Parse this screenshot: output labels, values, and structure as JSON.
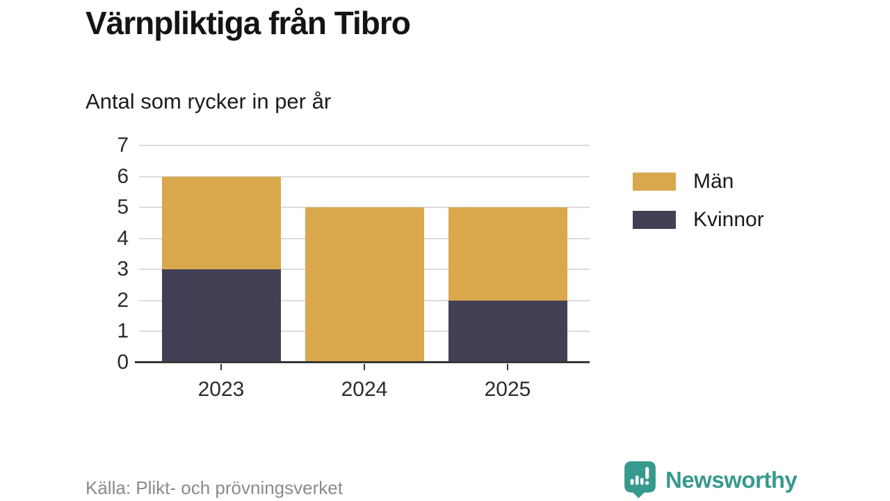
{
  "chart_data": {
    "type": "bar",
    "stacked": true,
    "title": "Värnpliktiga från Tibro",
    "subtitle": "Antal som rycker in per år",
    "categories": [
      "2023",
      "2024",
      "2025"
    ],
    "series": [
      {
        "name": "Kvinnor",
        "color": "#424055",
        "values": [
          3,
          0,
          2
        ]
      },
      {
        "name": "Män",
        "color": "#d9a84c",
        "values": [
          3,
          5,
          3
        ]
      }
    ],
    "totals": [
      6,
      5,
      5
    ],
    "xlabel": "",
    "ylabel": "",
    "ylim": [
      0,
      7
    ],
    "yticks": [
      0,
      1,
      2,
      3,
      4,
      5,
      6,
      7
    ],
    "grid": true,
    "legend_position": "right"
  },
  "legend": {
    "items": [
      {
        "label": "Män",
        "color": "#d9a84c"
      },
      {
        "label": "Kvinnor",
        "color": "#424055"
      }
    ]
  },
  "footer": {
    "source": "Källa: Plikt- och prövningsverket",
    "brand": "Newsworthy",
    "brand_color": "#38998e"
  },
  "icons": {
    "logo": "newsworthy-speech-bubble-bar-chart-icon"
  }
}
